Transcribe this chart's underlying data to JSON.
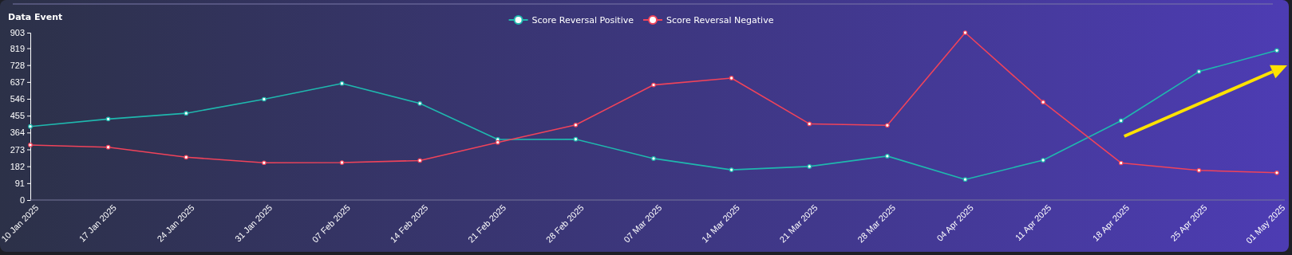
{
  "chart_data": {
    "type": "line",
    "ylabel": "Data Event",
    "categories": [
      "10 Jan 2025",
      "17 Jan 2025",
      "24 Jan 2025",
      "31 Jan 2025",
      "07 Feb 2025",
      "14 Feb 2025",
      "21 Feb 2025",
      "28 Feb 2025",
      "07 Mar 2025",
      "14 Mar 2025",
      "21 Mar 2025",
      "28 Mar 2025",
      "04 Apr 2025",
      "11 Apr 2025",
      "18 Apr 2025",
      "25 Apr 2025",
      "01 May 2025"
    ],
    "series": [
      {
        "name": "Score Reversal Positive",
        "color": "#1fb8ae",
        "values": [
          397,
          437,
          468,
          544,
          629,
          521,
          327,
          328,
          224,
          163,
          181,
          237,
          111,
          215,
          428,
          693,
          807
        ]
      },
      {
        "name": "Score Reversal Negative",
        "color": "#f0435a",
        "values": [
          297,
          285,
          231,
          201,
          202,
          213,
          311,
          405,
          621,
          658,
          411,
          403,
          903,
          528,
          200,
          160,
          147
        ]
      }
    ],
    "ylim": [
      0,
      903
    ],
    "yticks": [
      0,
      91,
      182,
      273,
      364,
      455,
      546,
      637,
      728,
      819,
      903
    ],
    "grid": false,
    "legend": "top",
    "marker": "circle",
    "line_style": "solid"
  }
}
